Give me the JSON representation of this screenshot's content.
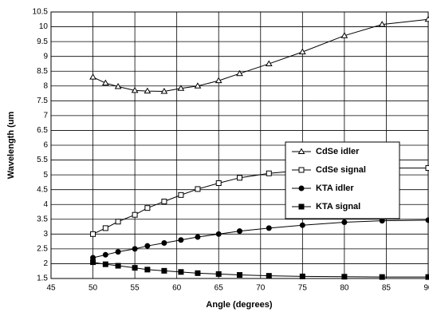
{
  "chart_data": {
    "type": "line",
    "x_label": "Angle (degrees)",
    "y_label": "Wavelength (um",
    "xlim": [
      45,
      90
    ],
    "xticks": [
      45,
      50,
      55,
      60,
      65,
      70,
      75,
      80,
      85,
      90
    ],
    "ylim": [
      1.5,
      10.5
    ],
    "yticks": [
      1.5,
      2,
      2.5,
      3,
      3.5,
      4,
      4.5,
      5,
      5.5,
      6,
      6.5,
      7,
      7.5,
      8,
      8.5,
      9,
      9.5,
      10,
      10.5
    ],
    "grid": true,
    "legend": "right",
    "x": [
      50,
      51.5,
      53,
      55,
      56.5,
      58.5,
      60.5,
      62.5,
      65,
      67.5,
      71,
      75,
      80,
      84.5,
      90
    ],
    "series": [
      {
        "name": "CdSe idler",
        "color": "#000000",
        "marker": "triangle-open",
        "values": [
          8.3,
          8.1,
          7.98,
          7.85,
          7.83,
          7.82,
          7.92,
          8.0,
          8.18,
          8.42,
          8.75,
          9.15,
          9.7,
          10.08,
          10.25
        ]
      },
      {
        "name": "CdSe signal",
        "color": "#000000",
        "marker": "square-open",
        "values": [
          3.0,
          3.2,
          3.42,
          3.65,
          3.88,
          4.1,
          4.32,
          4.52,
          4.72,
          4.9,
          5.05,
          5.15,
          5.22,
          5.23,
          5.23
        ]
      },
      {
        "name": "KTA idler",
        "color": "#000000",
        "marker": "circle-filled",
        "values": [
          2.2,
          2.3,
          2.4,
          2.5,
          2.6,
          2.7,
          2.8,
          2.9,
          3.0,
          3.1,
          3.2,
          3.3,
          3.4,
          3.45,
          3.47
        ]
      },
      {
        "name": "KTA signal",
        "color": "#000000",
        "marker": "square-filled",
        "values": [
          2.05,
          1.98,
          1.93,
          1.86,
          1.8,
          1.76,
          1.72,
          1.68,
          1.65,
          1.62,
          1.59,
          1.57,
          1.56,
          1.55,
          1.55
        ]
      }
    ]
  }
}
